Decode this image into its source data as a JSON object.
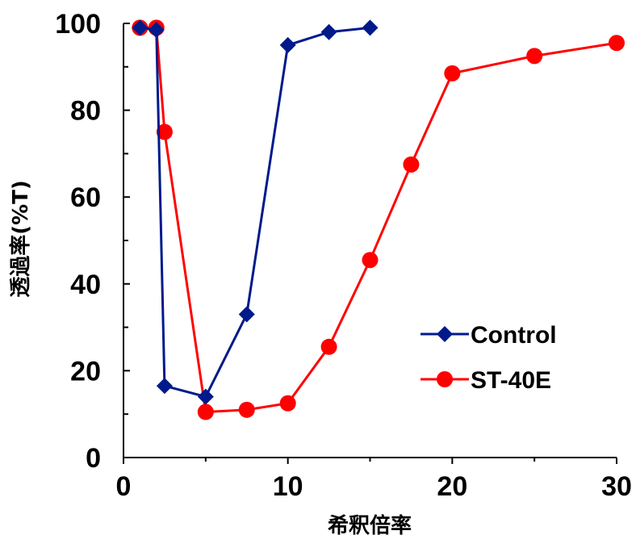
{
  "chart_data": {
    "type": "line",
    "xlabel": "希釈倍率",
    "ylabel": "透過率(%T)",
    "xlim": [
      0,
      30
    ],
    "ylim": [
      0,
      100
    ],
    "x_ticks": [
      0,
      10,
      20,
      30
    ],
    "x_tick_labels": [
      "0",
      "10",
      "20",
      "30"
    ],
    "y_ticks": [
      0,
      20,
      40,
      60,
      80,
      100
    ],
    "y_tick_labels": [
      "0",
      "20",
      "40",
      "60",
      "80",
      "100"
    ],
    "grid": false,
    "legend_position": "bottom-right",
    "series": [
      {
        "name": "Control",
        "color": "#001a8c",
        "marker": "diamond",
        "x": [
          1,
          2,
          2.5,
          5,
          7.5,
          10,
          12.5,
          15
        ],
        "y": [
          99,
          98.5,
          16.5,
          14,
          33,
          95,
          98,
          99
        ]
      },
      {
        "name": "ST-40E",
        "color": "#ff0000",
        "marker": "circle",
        "x": [
          1,
          2,
          2.5,
          5,
          7.5,
          10,
          12.5,
          15,
          17.5,
          20,
          25,
          30
        ],
        "y": [
          99,
          99,
          75,
          10.5,
          11,
          12.5,
          25.5,
          45.5,
          67.5,
          88.5,
          92.5,
          95.5
        ]
      }
    ]
  }
}
